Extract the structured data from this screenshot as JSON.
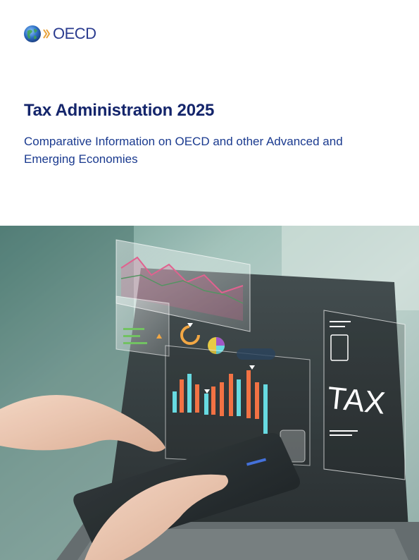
{
  "header": {
    "logo_text": "OECD",
    "logo_icon": "oecd-globe-icon"
  },
  "cover": {
    "title": "Tax Administration 2025",
    "subtitle": "Comparative Information on OECD and other Advanced and Emerging Economies"
  },
  "photo": {
    "panel_label": "TAX"
  },
  "colors": {
    "title": "#14256b",
    "subtitle": "#1a3a8f",
    "logo_blue": "#2a3b8f",
    "accent_orange": "#f26b3a",
    "accent_cyan": "#5fd8e0"
  }
}
